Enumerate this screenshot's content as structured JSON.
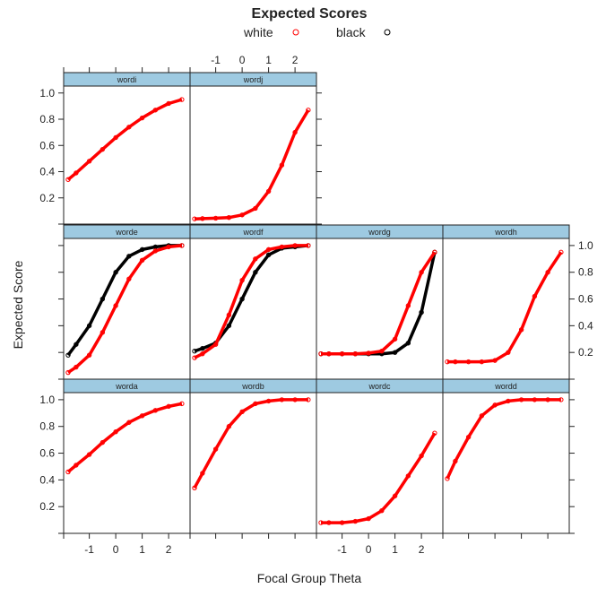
{
  "chart_data": {
    "type": "line",
    "title": "Expected Scores",
    "xlabel": "Focal Group Theta",
    "ylabel": "Expected Score",
    "xlim": [
      -1.97,
      2.81
    ],
    "ylim": [
      0,
      1.053
    ],
    "xticks": [
      -1,
      0,
      1,
      2
    ],
    "yticks": [
      0.2,
      0.4,
      0.6,
      0.8,
      1.0
    ],
    "ytick_labels": [
      "0.2",
      "0.4",
      "0.6",
      "0.8",
      "1.0"
    ],
    "xtick_labels": [
      "-1",
      "0",
      "1",
      "2"
    ],
    "legend": {
      "placement": "top",
      "entries": [
        {
          "name": "white",
          "color": "#ff0000"
        },
        {
          "name": "black",
          "color": "#000000"
        }
      ]
    },
    "strip_color": "#9ecae1",
    "x": [
      -1.8,
      -1.5,
      -1,
      -0.5,
      0,
      0.5,
      1,
      1.5,
      2,
      2.5
    ],
    "panels": [
      {
        "name": "wordi",
        "series": [
          {
            "name": "white",
            "values": [
              0.34,
              0.39,
              0.48,
              0.57,
              0.66,
              0.74,
              0.81,
              0.87,
              0.92,
              0.95
            ]
          }
        ]
      },
      {
        "name": "wordj",
        "series": [
          {
            "name": "white",
            "values": [
              0.04,
              0.042,
              0.045,
              0.05,
              0.07,
              0.12,
              0.25,
              0.45,
              0.7,
              0.87
            ]
          }
        ]
      },
      {
        "name": "worde",
        "series": [
          {
            "name": "white",
            "values": [
              0.05,
              0.09,
              0.18,
              0.35,
              0.55,
              0.75,
              0.89,
              0.96,
              0.99,
              1.0
            ]
          },
          {
            "name": "black",
            "values": [
              0.18,
              0.26,
              0.4,
              0.6,
              0.8,
              0.92,
              0.97,
              0.99,
              1.0,
              1.0
            ]
          }
        ]
      },
      {
        "name": "wordf",
        "series": [
          {
            "name": "white",
            "values": [
              0.16,
              0.19,
              0.26,
              0.48,
              0.74,
              0.9,
              0.97,
              0.99,
              1.0,
              1.0
            ]
          },
          {
            "name": "black",
            "values": [
              0.21,
              0.23,
              0.27,
              0.4,
              0.6,
              0.8,
              0.93,
              0.98,
              0.99,
              1.0
            ]
          }
        ]
      },
      {
        "name": "wordg",
        "series": [
          {
            "name": "white",
            "values": [
              0.19,
              0.19,
              0.19,
              0.19,
              0.195,
              0.21,
              0.3,
              0.55,
              0.8,
              0.95
            ]
          },
          {
            "name": "black",
            "values": [
              0.19,
              0.19,
              0.19,
              0.19,
              0.19,
              0.19,
              0.2,
              0.27,
              0.5,
              0.95
            ]
          }
        ]
      },
      {
        "name": "wordh",
        "series": [
          {
            "name": "white",
            "values": [
              0.13,
              0.13,
              0.13,
              0.13,
              0.14,
              0.2,
              0.37,
              0.62,
              0.8,
              0.95
            ]
          }
        ]
      },
      {
        "name": "worda",
        "series": [
          {
            "name": "white",
            "values": [
              0.46,
              0.51,
              0.59,
              0.68,
              0.76,
              0.83,
              0.88,
              0.92,
              0.95,
              0.97
            ]
          }
        ]
      },
      {
        "name": "wordb",
        "series": [
          {
            "name": "white",
            "values": [
              0.34,
              0.45,
              0.63,
              0.8,
              0.91,
              0.97,
              0.99,
              1.0,
              1.0,
              1.0
            ]
          }
        ]
      },
      {
        "name": "wordc",
        "series": [
          {
            "name": "white",
            "values": [
              0.08,
              0.08,
              0.08,
              0.09,
              0.11,
              0.17,
              0.28,
              0.43,
              0.58,
              0.75
            ]
          }
        ]
      },
      {
        "name": "wordd",
        "series": [
          {
            "name": "white",
            "values": [
              0.41,
              0.54,
              0.72,
              0.88,
              0.96,
              0.99,
              1.0,
              1.0,
              1.0,
              1.0
            ]
          }
        ]
      }
    ]
  }
}
